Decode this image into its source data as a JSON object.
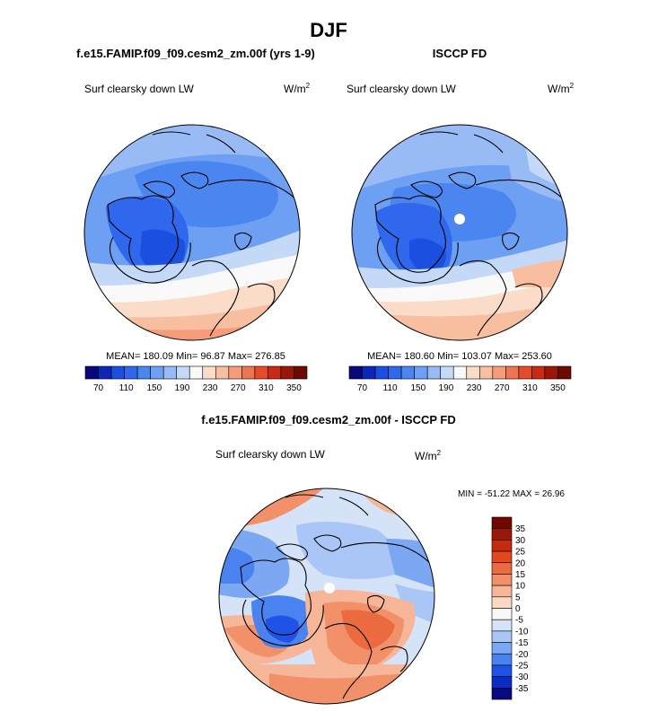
{
  "page_title": "DJF",
  "colors": {
    "abs_palette": [
      "#08087a",
      "#0c27b8",
      "#1a4fe0",
      "#2f68ec",
      "#4b86f0",
      "#6d9ff2",
      "#98baf5",
      "#c4d8f8",
      "#f9f9f9",
      "#fbdcc9",
      "#f8bea0",
      "#f59d7a",
      "#ee7452",
      "#e44b2a",
      "#c92a12",
      "#9a1606",
      "#6a0a00"
    ],
    "diff_palette": [
      "#0a0a80",
      "#0b2cc2",
      "#1f52e6",
      "#4a82f0",
      "#7ba7f3",
      "#a9c6f6",
      "#d5e3f9",
      "#f8f8f8",
      "#fbd8c3",
      "#f7b697",
      "#f2906a",
      "#ec6a3f",
      "#e2481c",
      "#c42b0e",
      "#9c1806",
      "#6e0800"
    ]
  },
  "chart_data": [
    {
      "type": "heatmap",
      "projection": "polar-stereographic",
      "title": "f.e15.FAMIP.f09_f09.cesm2_zm.00f (yrs 1-9)",
      "left_label": "Surf clearsky down LW",
      "units": "W/m",
      "units_exp": "2",
      "stats": {
        "mean": "180.09",
        "min": "96.87",
        "max": "276.85"
      },
      "stats_text": "MEAN= 180.09  Min=  96.87  Max= 276.85",
      "colorbar": {
        "orientation": "horizontal",
        "levels": [
          70,
          90,
          110,
          130,
          150,
          170,
          190,
          210,
          230,
          250,
          270,
          290,
          310,
          330,
          350
        ],
        "tick_labels": [
          "70",
          "110",
          "150",
          "190",
          "230",
          "270",
          "310",
          "350"
        ]
      }
    },
    {
      "type": "heatmap",
      "projection": "polar-stereographic",
      "title": "ISCCP FD",
      "left_label": "Surf clearsky down LW",
      "units": "W/m",
      "units_exp": "2",
      "stats": {
        "mean": "180.60",
        "min": "103.07",
        "max": "253.60"
      },
      "stats_text": "MEAN= 180.60  Min= 103.07  Max= 253.60",
      "colorbar": {
        "orientation": "horizontal",
        "levels": [
          70,
          90,
          110,
          130,
          150,
          170,
          190,
          210,
          230,
          250,
          270,
          290,
          310,
          330,
          350
        ],
        "tick_labels": [
          "70",
          "110",
          "150",
          "190",
          "230",
          "270",
          "310",
          "350"
        ]
      }
    },
    {
      "type": "heatmap",
      "projection": "polar-stereographic",
      "title": "f.e15.FAMIP.f09_f09.cesm2_zm.00f - ISCCP FD",
      "left_label": "Surf clearsky down LW",
      "units": "W/m",
      "units_exp": "2",
      "stats": {
        "min": "-51.22",
        "max": "26.96"
      },
      "stats_text": "MIN = -51.22 MAX =  26.96",
      "colorbar": {
        "orientation": "vertical",
        "levels": [
          -35,
          -30,
          -25,
          -20,
          -15,
          -10,
          -5,
          0,
          5,
          10,
          15,
          20,
          25,
          30,
          35
        ],
        "tick_labels": [
          "35",
          "30",
          "25",
          "20",
          "15",
          "10",
          "5",
          "0",
          "-5",
          "-10",
          "-15",
          "-20",
          "-25",
          "-30",
          "-35"
        ]
      }
    }
  ]
}
